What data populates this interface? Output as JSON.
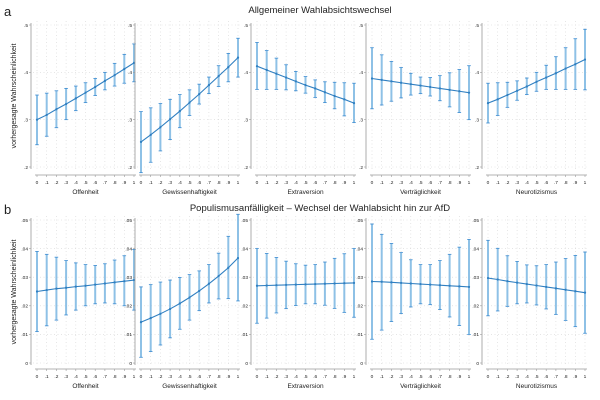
{
  "figure": {
    "panel_a_letter": "a",
    "panel_b_letter": "b"
  },
  "colors": {
    "line": "#2f7fc1",
    "ci": "#8ec1e6",
    "cap": "#3a8ad0",
    "grid": "#d6d6d6",
    "axis": "#9a9a9a"
  },
  "chart_data": [
    {
      "type": "line",
      "row_title": "Allgemeiner Wahlabsichtswechsel",
      "ylabel": "vorhergesagte Wahrscheinlichkeit",
      "ylim": [
        0.2,
        0.5
      ],
      "yticks": [
        0.2,
        0.3,
        0.4,
        0.5
      ],
      "ytick_labels": [
        ".2",
        ".3",
        ".4",
        ".5"
      ],
      "x": [
        0,
        0.1,
        0.2,
        0.3,
        0.4,
        0.5,
        0.6,
        0.7,
        0.8,
        0.9,
        1
      ],
      "xtick_labels": [
        "0",
        ".1",
        ".2",
        ".3",
        ".4",
        ".5",
        ".6",
        ".7",
        ".8",
        ".9",
        "1"
      ],
      "grid": true,
      "panels": [
        {
          "xlabel": "Offenheit",
          "y": [
            0.3,
            0.31,
            0.322,
            0.333,
            0.345,
            0.357,
            0.369,
            0.382,
            0.394,
            0.407,
            0.42
          ],
          "lo": [
            0.247,
            0.265,
            0.283,
            0.3,
            0.319,
            0.336,
            0.351,
            0.363,
            0.371,
            0.377,
            0.38
          ],
          "hi": [
            0.352,
            0.356,
            0.361,
            0.366,
            0.371,
            0.378,
            0.387,
            0.4,
            0.419,
            0.438,
            0.46
          ]
        },
        {
          "xlabel": "Gewissenhaftigkeit",
          "y": [
            0.253,
            0.268,
            0.284,
            0.301,
            0.318,
            0.336,
            0.354,
            0.373,
            0.392,
            0.411,
            0.431
          ],
          "lo": [
            0.188,
            0.21,
            0.234,
            0.258,
            0.283,
            0.309,
            0.333,
            0.355,
            0.37,
            0.38,
            0.39
          ],
          "hi": [
            0.317,
            0.325,
            0.334,
            0.343,
            0.353,
            0.363,
            0.375,
            0.39,
            0.414,
            0.44,
            0.472
          ]
        },
        {
          "xlabel": "Extraversion",
          "y": [
            0.413,
            0.405,
            0.397,
            0.389,
            0.381,
            0.373,
            0.366,
            0.358,
            0.35,
            0.343,
            0.335
          ],
          "lo": [
            0.364,
            0.364,
            0.364,
            0.363,
            0.361,
            0.356,
            0.347,
            0.336,
            0.323,
            0.308,
            0.294
          ],
          "hi": [
            0.463,
            0.446,
            0.43,
            0.416,
            0.402,
            0.391,
            0.384,
            0.38,
            0.379,
            0.378,
            0.377
          ]
        },
        {
          "xlabel": "Verträglichkeit",
          "y": [
            0.387,
            0.384,
            0.381,
            0.378,
            0.375,
            0.372,
            0.369,
            0.366,
            0.363,
            0.36,
            0.357
          ],
          "lo": [
            0.323,
            0.331,
            0.339,
            0.346,
            0.352,
            0.355,
            0.35,
            0.34,
            0.327,
            0.315,
            0.3
          ],
          "hi": [
            0.452,
            0.437,
            0.423,
            0.41,
            0.398,
            0.39,
            0.389,
            0.393,
            0.399,
            0.406,
            0.414
          ]
        },
        {
          "xlabel": "Neurotizismus",
          "y": [
            0.335,
            0.343,
            0.352,
            0.361,
            0.37,
            0.38,
            0.389,
            0.398,
            0.408,
            0.417,
            0.427
          ],
          "lo": [
            0.293,
            0.309,
            0.326,
            0.341,
            0.353,
            0.36,
            0.364,
            0.364,
            0.364,
            0.364,
            0.363
          ],
          "hi": [
            0.377,
            0.378,
            0.379,
            0.382,
            0.388,
            0.4,
            0.415,
            0.433,
            0.452,
            0.471,
            0.491
          ]
        }
      ]
    },
    {
      "type": "line",
      "row_title": "Populismusanfälligkeit – Wechsel der Wahlabsicht hin zur AfD",
      "ylabel": "vorhergesagte Wahrscheinlichkeit",
      "ylim": [
        0,
        0.05
      ],
      "yticks": [
        0,
        0.01,
        0.02,
        0.03,
        0.04,
        0.05
      ],
      "ytick_labels": [
        "0",
        ".01",
        ".02",
        ".03",
        ".04",
        ".05"
      ],
      "x": [
        0,
        0.1,
        0.2,
        0.3,
        0.4,
        0.5,
        0.6,
        0.7,
        0.8,
        0.9,
        1
      ],
      "xtick_labels": [
        "0",
        ".1",
        ".2",
        ".3",
        ".4",
        ".5",
        ".6",
        ".7",
        ".8",
        ".9",
        "1"
      ],
      "grid": true,
      "panels": [
        {
          "xlabel": "Offenheit",
          "y": [
            0.025,
            0.0255,
            0.026,
            0.0263,
            0.0267,
            0.027,
            0.0274,
            0.0278,
            0.0282,
            0.0286,
            0.029
          ],
          "lo": [
            0.011,
            0.013,
            0.015,
            0.0168,
            0.0185,
            0.02,
            0.0207,
            0.021,
            0.0207,
            0.02,
            0.0185
          ],
          "hi": [
            0.039,
            0.038,
            0.037,
            0.0358,
            0.035,
            0.0344,
            0.0341,
            0.0347,
            0.036,
            0.0375,
            0.0397
          ]
        },
        {
          "xlabel": "Gewissenhaftigkeit",
          "y": [
            0.0143,
            0.0157,
            0.0172,
            0.0189,
            0.0208,
            0.0229,
            0.0252,
            0.0277,
            0.0304,
            0.0333,
            0.0367
          ],
          "lo": [
            0.002,
            0.004,
            0.0063,
            0.0088,
            0.0118,
            0.015,
            0.0183,
            0.021,
            0.0224,
            0.0225,
            0.0217
          ],
          "hi": [
            0.0266,
            0.0274,
            0.0283,
            0.029,
            0.0299,
            0.0309,
            0.0322,
            0.0344,
            0.0384,
            0.0443,
            0.052
          ]
        },
        {
          "xlabel": "Extraversion",
          "y": [
            0.027,
            0.0271,
            0.0272,
            0.0273,
            0.0274,
            0.0275,
            0.0276,
            0.0277,
            0.0278,
            0.0279,
            0.028
          ],
          "lo": [
            0.0139,
            0.0157,
            0.0175,
            0.019,
            0.0201,
            0.0207,
            0.0207,
            0.0202,
            0.0191,
            0.0177,
            0.016
          ],
          "hi": [
            0.04,
            0.0383,
            0.0369,
            0.0356,
            0.0347,
            0.0342,
            0.0344,
            0.0353,
            0.0366,
            0.0382,
            0.04
          ]
        },
        {
          "xlabel": "Verträglichkeit",
          "y": [
            0.0285,
            0.0284,
            0.0282,
            0.028,
            0.0278,
            0.0276,
            0.0274,
            0.0272,
            0.027,
            0.0268,
            0.0266
          ],
          "lo": [
            0.0083,
            0.0115,
            0.0145,
            0.0173,
            0.0196,
            0.0207,
            0.0204,
            0.0187,
            0.0161,
            0.0131,
            0.01
          ],
          "hi": [
            0.0486,
            0.045,
            0.0418,
            0.0386,
            0.0361,
            0.0344,
            0.0344,
            0.0358,
            0.038,
            0.0405,
            0.0432
          ]
        },
        {
          "xlabel": "Neurotizismus",
          "y": [
            0.0297,
            0.0292,
            0.0286,
            0.0281,
            0.0276,
            0.0271,
            0.0266,
            0.0261,
            0.0256,
            0.0251,
            0.0246
          ],
          "lo": [
            0.0165,
            0.0182,
            0.0198,
            0.0207,
            0.021,
            0.0203,
            0.0189,
            0.017,
            0.0149,
            0.0127,
            0.0104
          ],
          "hi": [
            0.0429,
            0.0401,
            0.0375,
            0.0355,
            0.0343,
            0.034,
            0.0344,
            0.0353,
            0.0365,
            0.0376,
            0.0388
          ]
        }
      ]
    }
  ]
}
